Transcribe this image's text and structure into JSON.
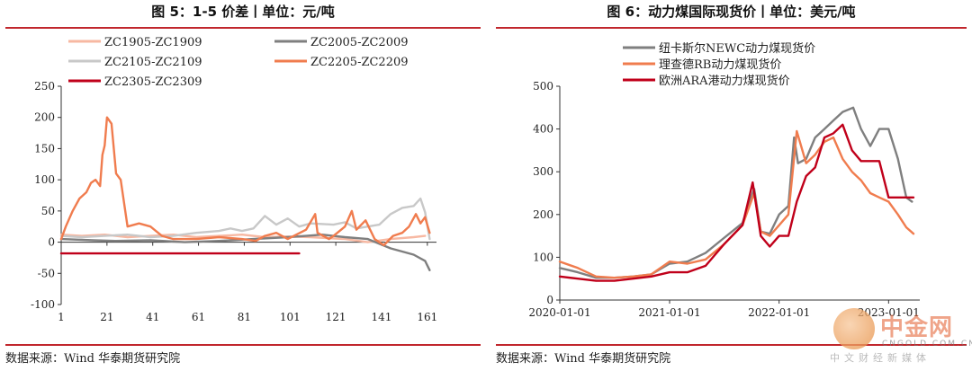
{
  "sources": [
    "数据来源：Wind  华泰期货研究院",
    "数据来源：Wind  华泰期货研究院"
  ],
  "watermark": {
    "title": "中金网",
    "domain": "CNGOLD.COM.CN",
    "subtitle": "中文财经新媒体"
  },
  "chart_data": [
    {
      "type": "line",
      "title": "图 5：1-5 价差丨单位：元/吨",
      "xlabel": "",
      "ylabel": "",
      "xlim": [
        1,
        165
      ],
      "ylim": [
        -100,
        250
      ],
      "x_ticks": [
        1,
        21,
        41,
        61,
        81,
        101,
        121,
        141,
        161
      ],
      "y_ticks": [
        -100,
        -50,
        0,
        50,
        100,
        150,
        200,
        250
      ],
      "grid": false,
      "legend": "top",
      "series": [
        {
          "name": "ZC1905-ZC1909",
          "color": "#f7b8a2",
          "points": [
            [
              1,
              12
            ],
            [
              10,
              10
            ],
            [
              20,
              12
            ],
            [
              30,
              8
            ],
            [
              40,
              10
            ],
            [
              50,
              12
            ],
            [
              60,
              8
            ],
            [
              70,
              10
            ],
            [
              80,
              12
            ],
            [
              90,
              8
            ],
            [
              100,
              9
            ],
            [
              110,
              8
            ],
            [
              125,
              5
            ],
            [
              135,
              0
            ],
            [
              145,
              5
            ],
            [
              155,
              8
            ],
            [
              160,
              10
            ]
          ]
        },
        {
          "name": "ZC2005-ZC2009",
          "color": "#7f7f7f",
          "points": [
            [
              1,
              5
            ],
            [
              15,
              3
            ],
            [
              25,
              2
            ],
            [
              40,
              3
            ],
            [
              55,
              0
            ],
            [
              70,
              2
            ],
            [
              85,
              5
            ],
            [
              100,
              8
            ],
            [
              108,
              10
            ],
            [
              115,
              12
            ],
            [
              125,
              8
            ],
            [
              135,
              5
            ],
            [
              145,
              -10
            ],
            [
              150,
              -15
            ],
            [
              155,
              -20
            ],
            [
              160,
              -30
            ],
            [
              162,
              -45
            ]
          ]
        },
        {
          "name": "ZC2105-ZC2109",
          "color": "#c8c8c8",
          "points": [
            [
              1,
              10
            ],
            [
              10,
              8
            ],
            [
              20,
              10
            ],
            [
              30,
              12
            ],
            [
              40,
              8
            ],
            [
              50,
              10
            ],
            [
              60,
              15
            ],
            [
              70,
              18
            ],
            [
              75,
              22
            ],
            [
              80,
              18
            ],
            [
              85,
              22
            ],
            [
              90,
              42
            ],
            [
              95,
              28
            ],
            [
              100,
              38
            ],
            [
              105,
              25
            ],
            [
              110,
              30
            ],
            [
              120,
              28
            ],
            [
              125,
              32
            ],
            [
              130,
              22
            ],
            [
              135,
              25
            ],
            [
              140,
              28
            ],
            [
              145,
              45
            ],
            [
              150,
              55
            ],
            [
              155,
              58
            ],
            [
              158,
              70
            ],
            [
              160,
              48
            ],
            [
              162,
              5
            ]
          ]
        },
        {
          "name": "ZC2205-ZC2209",
          "color": "#f07c4e",
          "points": [
            [
              1,
              5
            ],
            [
              3,
              25
            ],
            [
              6,
              50
            ],
            [
              9,
              70
            ],
            [
              12,
              80
            ],
            [
              14,
              95
            ],
            [
              16,
              100
            ],
            [
              18,
              90
            ],
            [
              19,
              140
            ],
            [
              20,
              155
            ],
            [
              21,
              200
            ],
            [
              22,
              195
            ],
            [
              23,
              190
            ],
            [
              25,
              110
            ],
            [
              27,
              100
            ],
            [
              30,
              25
            ],
            [
              35,
              30
            ],
            [
              40,
              25
            ],
            [
              45,
              10
            ],
            [
              50,
              5
            ],
            [
              60,
              5
            ],
            [
              70,
              8
            ],
            [
              80,
              5
            ],
            [
              86,
              2
            ],
            [
              90,
              10
            ],
            [
              95,
              15
            ],
            [
              100,
              5
            ],
            [
              108,
              20
            ],
            [
              112,
              45
            ],
            [
              113,
              15
            ],
            [
              118,
              5
            ],
            [
              120,
              10
            ],
            [
              125,
              25
            ],
            [
              128,
              50
            ],
            [
              130,
              20
            ],
            [
              134,
              35
            ],
            [
              138,
              5
            ],
            [
              142,
              -5
            ],
            [
              146,
              10
            ],
            [
              150,
              15
            ],
            [
              153,
              25
            ],
            [
              156,
              45
            ],
            [
              158,
              30
            ],
            [
              160,
              40
            ],
            [
              162,
              15
            ]
          ]
        },
        {
          "name": "ZC2305-ZC2309",
          "color": "#c0001a",
          "points": [
            [
              1,
              -18
            ],
            [
              105,
              -18
            ]
          ]
        }
      ]
    },
    {
      "type": "line",
      "title": "图 6：动力煤国际现货价丨单位：美元/吨",
      "xlabel": "",
      "ylabel": "",
      "xlim": [
        "2020-01-01",
        "2023-04-15"
      ],
      "ylim": [
        0,
        500
      ],
      "x_ticks": [
        "2020-01-01",
        "2021-01-01",
        "2022-01-01",
        "2023-01-01"
      ],
      "y_ticks": [
        0,
        100,
        200,
        300,
        400,
        500
      ],
      "grid": false,
      "legend": "top-left",
      "series": [
        {
          "name": "纽卡斯尔NEWC动力煤现货价",
          "color": "#7f7f7f",
          "points": [
            [
              "2020-01-01",
              75
            ],
            [
              "2020-03-01",
              65
            ],
            [
              "2020-05-01",
              52
            ],
            [
              "2020-07-01",
              52
            ],
            [
              "2020-09-01",
              55
            ],
            [
              "2020-11-01",
              60
            ],
            [
              "2021-01-01",
              85
            ],
            [
              "2021-03-01",
              90
            ],
            [
              "2021-05-01",
              110
            ],
            [
              "2021-07-01",
              145
            ],
            [
              "2021-09-01",
              180
            ],
            [
              "2021-10-10",
              260
            ],
            [
              "2021-11-01",
              160
            ],
            [
              "2021-12-01",
              155
            ],
            [
              "2022-01-01",
              200
            ],
            [
              "2022-02-01",
              220
            ],
            [
              "2022-02-20",
              380
            ],
            [
              "2022-03-05",
              320
            ],
            [
              "2022-04-01",
              330
            ],
            [
              "2022-05-01",
              380
            ],
            [
              "2022-06-01",
              400
            ],
            [
              "2022-07-01",
              420
            ],
            [
              "2022-08-01",
              440
            ],
            [
              "2022-09-05",
              450
            ],
            [
              "2022-10-01",
              400
            ],
            [
              "2022-11-01",
              360
            ],
            [
              "2022-12-01",
              400
            ],
            [
              "2023-01-01",
              400
            ],
            [
              "2023-02-01",
              330
            ],
            [
              "2023-03-01",
              240
            ],
            [
              "2023-03-20",
              230
            ]
          ]
        },
        {
          "name": "理查德RB动力煤现货价",
          "color": "#f07c4e",
          "points": [
            [
              "2020-01-01",
              90
            ],
            [
              "2020-03-01",
              75
            ],
            [
              "2020-05-01",
              55
            ],
            [
              "2020-07-01",
              52
            ],
            [
              "2020-09-01",
              55
            ],
            [
              "2020-11-01",
              60
            ],
            [
              "2021-01-01",
              90
            ],
            [
              "2021-03-01",
              85
            ],
            [
              "2021-05-01",
              95
            ],
            [
              "2021-07-01",
              130
            ],
            [
              "2021-09-01",
              175
            ],
            [
              "2021-10-10",
              250
            ],
            [
              "2021-11-01",
              160
            ],
            [
              "2021-12-01",
              150
            ],
            [
              "2022-01-01",
              175
            ],
            [
              "2022-02-01",
              200
            ],
            [
              "2022-03-01",
              395
            ],
            [
              "2022-04-01",
              320
            ],
            [
              "2022-05-01",
              340
            ],
            [
              "2022-06-01",
              370
            ],
            [
              "2022-07-01",
              380
            ],
            [
              "2022-08-01",
              330
            ],
            [
              "2022-09-01",
              300
            ],
            [
              "2022-10-01",
              280
            ],
            [
              "2022-11-01",
              250
            ],
            [
              "2022-12-01",
              240
            ],
            [
              "2023-01-01",
              230
            ],
            [
              "2023-02-01",
              200
            ],
            [
              "2023-03-01",
              170
            ],
            [
              "2023-03-25",
              155
            ]
          ]
        },
        {
          "name": "欧洲ARA港动力煤现货价",
          "color": "#c0001a",
          "points": [
            [
              "2020-01-01",
              55
            ],
            [
              "2020-03-01",
              50
            ],
            [
              "2020-05-01",
              45
            ],
            [
              "2020-07-01",
              45
            ],
            [
              "2020-09-01",
              50
            ],
            [
              "2020-11-01",
              55
            ],
            [
              "2021-01-01",
              65
            ],
            [
              "2021-03-01",
              65
            ],
            [
              "2021-05-01",
              80
            ],
            [
              "2021-07-01",
              130
            ],
            [
              "2021-09-01",
              175
            ],
            [
              "2021-10-05",
              275
            ],
            [
              "2021-11-01",
              150
            ],
            [
              "2021-12-01",
              125
            ],
            [
              "2022-01-01",
              150
            ],
            [
              "2022-02-01",
              150
            ],
            [
              "2022-03-01",
              230
            ],
            [
              "2022-04-01",
              290
            ],
            [
              "2022-05-01",
              310
            ],
            [
              "2022-06-01",
              380
            ],
            [
              "2022-07-01",
              390
            ],
            [
              "2022-08-01",
              410
            ],
            [
              "2022-09-01",
              350
            ],
            [
              "2022-10-01",
              325
            ],
            [
              "2022-11-01",
              325
            ],
            [
              "2022-12-01",
              325
            ],
            [
              "2023-01-01",
              240
            ],
            [
              "2023-02-01",
              240
            ],
            [
              "2023-03-25",
              240
            ]
          ]
        }
      ]
    }
  ]
}
